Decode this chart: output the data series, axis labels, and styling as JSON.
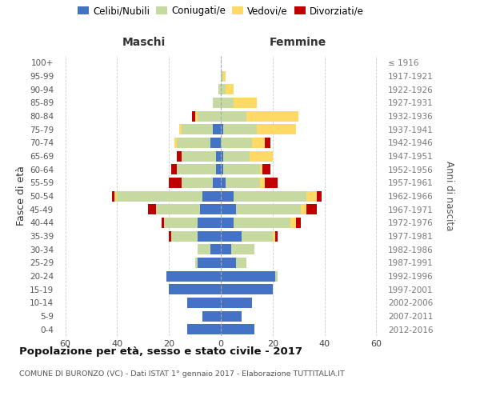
{
  "age_groups": [
    "100+",
    "95-99",
    "90-94",
    "85-89",
    "80-84",
    "75-79",
    "70-74",
    "65-69",
    "60-64",
    "55-59",
    "50-54",
    "45-49",
    "40-44",
    "35-39",
    "30-34",
    "25-29",
    "20-24",
    "15-19",
    "10-14",
    "5-9",
    "0-4"
  ],
  "birth_years": [
    "≤ 1916",
    "1917-1921",
    "1922-1926",
    "1927-1931",
    "1932-1936",
    "1937-1941",
    "1942-1946",
    "1947-1951",
    "1952-1956",
    "1957-1961",
    "1962-1966",
    "1967-1971",
    "1972-1976",
    "1977-1981",
    "1982-1986",
    "1987-1991",
    "1992-1996",
    "1997-2001",
    "2002-2006",
    "2007-2011",
    "2012-2016"
  ],
  "males_celibe": [
    0,
    0,
    0,
    0,
    0,
    3,
    4,
    2,
    2,
    3,
    7,
    8,
    9,
    9,
    4,
    9,
    21,
    20,
    13,
    7,
    13
  ],
  "males_coniugato": [
    0,
    0,
    1,
    3,
    9,
    12,
    13,
    13,
    15,
    12,
    33,
    17,
    13,
    10,
    5,
    1,
    0,
    0,
    0,
    0,
    0
  ],
  "males_vedovo": [
    0,
    0,
    0,
    0,
    1,
    1,
    1,
    0,
    0,
    0,
    1,
    0,
    0,
    0,
    0,
    0,
    0,
    0,
    0,
    0,
    0
  ],
  "males_divorziato": [
    0,
    0,
    0,
    0,
    1,
    0,
    0,
    2,
    2,
    5,
    1,
    3,
    1,
    1,
    0,
    0,
    0,
    0,
    0,
    0,
    0
  ],
  "fem_nubile": [
    0,
    0,
    0,
    0,
    0,
    1,
    0,
    1,
    1,
    2,
    5,
    6,
    5,
    8,
    4,
    6,
    21,
    20,
    12,
    8,
    13
  ],
  "fem_coniugata": [
    0,
    1,
    2,
    5,
    10,
    13,
    12,
    10,
    14,
    13,
    28,
    25,
    22,
    12,
    9,
    4,
    1,
    0,
    0,
    0,
    0
  ],
  "fem_vedova": [
    0,
    1,
    3,
    9,
    20,
    15,
    5,
    9,
    1,
    2,
    4,
    2,
    2,
    1,
    0,
    0,
    0,
    0,
    0,
    0,
    0
  ],
  "fem_divorziata": [
    0,
    0,
    0,
    0,
    0,
    0,
    2,
    0,
    3,
    5,
    2,
    4,
    2,
    1,
    0,
    0,
    0,
    0,
    0,
    0,
    0
  ],
  "color_celibe": "#4472C4",
  "color_coniugato": "#C5D9A0",
  "color_vedovo": "#FFD966",
  "color_divorziato": "#C00000",
  "title": "Popolazione per età, sesso e stato civile - 2017",
  "subtitle": "COMUNE DI BURONZO (VC) - Dati ISTAT 1° gennaio 2017 - Elaborazione TUTTITALIA.IT",
  "ylabel_left": "Fasce di età",
  "ylabel_right": "Anni di nascita",
  "header_left": "Maschi",
  "header_right": "Femmine",
  "xlim": 63,
  "bg_color": "#FFFFFF",
  "grid_color": "#CCCCCC",
  "legend_labels": [
    "Celibi/Nubili",
    "Coniugati/e",
    "Vedovi/e",
    "Divorziati/e"
  ]
}
